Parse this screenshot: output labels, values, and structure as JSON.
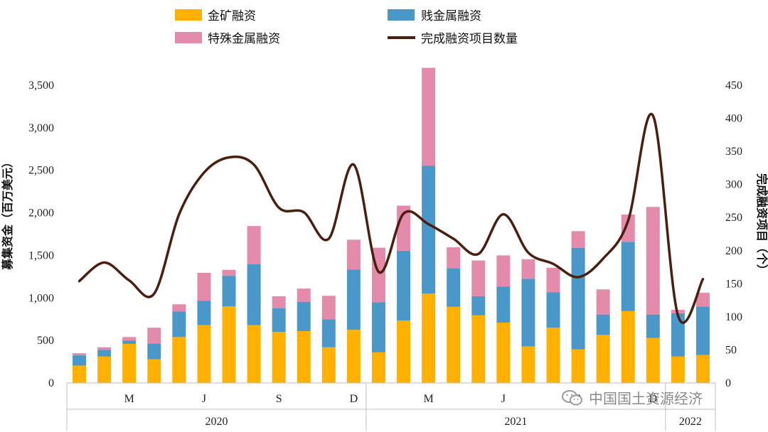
{
  "chart_data": {
    "type": "bar",
    "stacked": true,
    "categories_count": 26,
    "series": [
      {
        "name": "金矿融资",
        "color": "#FFB000",
        "values": [
          205,
          310,
          460,
          280,
          540,
          680,
          900,
          680,
          600,
          610,
          420,
          625,
          360,
          735,
          1050,
          895,
          795,
          710,
          430,
          650,
          395,
          565,
          845,
          530,
          310,
          330
        ]
      },
      {
        "name": "贱金属融资",
        "color": "#4A98C9",
        "values": [
          120,
          80,
          40,
          185,
          300,
          285,
          360,
          715,
          280,
          345,
          330,
          710,
          590,
          820,
          1505,
          455,
          225,
          425,
          795,
          415,
          1195,
          240,
          815,
          275,
          510,
          570
        ]
      },
      {
        "name": "特殊金属融资",
        "color": "#E48BAB",
        "values": [
          25,
          30,
          40,
          185,
          85,
          330,
          70,
          450,
          140,
          155,
          275,
          350,
          640,
          530,
          1150,
          245,
          420,
          365,
          230,
          290,
          195,
          295,
          320,
          1265,
          40,
          160
        ]
      }
    ],
    "line": {
      "name": "完成融资项目数量",
      "color": "#4B1E0E",
      "values": [
        154,
        182,
        155,
        135,
        255,
        318,
        341,
        330,
        265,
        258,
        218,
        330,
        168,
        256,
        240,
        218,
        195,
        255,
        197,
        180,
        160,
        188,
        245,
        404,
        102,
        157
      ]
    },
    "ylabel": "募集资金（百万美元）",
    "ylabel_right": "完成融资项目（个）",
    "ylim": [
      0,
      3500
    ],
    "y_ticks": [
      "0",
      "500",
      "1,000",
      "1,500",
      "2,000",
      "2,500",
      "3,000",
      "3,500"
    ],
    "y2lim": [
      0,
      450
    ],
    "y2_ticks": [
      "0",
      "50",
      "100",
      "150",
      "200",
      "250",
      "300",
      "350",
      "400",
      "450"
    ],
    "month_labels": [
      {
        "label": "M",
        "index": 2
      },
      {
        "label": "J",
        "index": 5
      },
      {
        "label": "S",
        "index": 8
      },
      {
        "label": "D",
        "index": 11
      },
      {
        "label": "M",
        "index": 14
      },
      {
        "label": "J",
        "index": 17
      },
      {
        "label": "S",
        "index": 20
      },
      {
        "label": "D",
        "index": 23
      }
    ],
    "years": [
      {
        "label": "2020",
        "start": 0,
        "end": 11
      },
      {
        "label": "2021",
        "start": 12,
        "end": 23
      },
      {
        "label": "2022",
        "start": 24,
        "end": 25
      }
    ],
    "legend_position": "top",
    "grid": false
  },
  "watermark": {
    "text": "中国国土资源经济"
  }
}
